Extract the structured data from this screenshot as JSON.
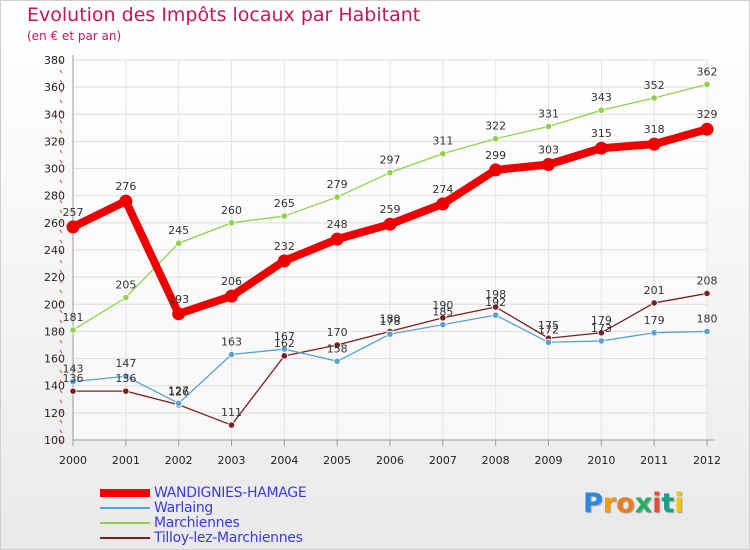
{
  "title": "Evolution des Impôts locaux par Habitant",
  "subtitle": "(en € et par an)",
  "logo_text": "Proxiti",
  "chart_data": {
    "type": "line",
    "x": [
      "2000",
      "2001",
      "2002",
      "2003",
      "2004",
      "2005",
      "2006",
      "2007",
      "2008",
      "2009",
      "2010",
      "2011",
      "2012"
    ],
    "ylim": [
      100,
      380
    ],
    "yticks": [
      100,
      120,
      140,
      160,
      180,
      200,
      220,
      240,
      260,
      280,
      300,
      320,
      340,
      360,
      380
    ],
    "grid": true,
    "legend_position": "bottom-left",
    "series": [
      {
        "name": "WANDIGNIES-HAMAGE",
        "color": "#ee0000",
        "values": [
          257,
          276,
          193,
          206,
          232,
          248,
          259,
          274,
          299,
          303,
          315,
          318,
          329
        ],
        "labels": [
          "257",
          "276",
          "193",
          "206",
          "232",
          "248",
          "259",
          "274",
          "299",
          "303",
          "315",
          "318",
          "329"
        ]
      },
      {
        "name": "Warlaing",
        "color": "#5aa0d2",
        "values": [
          143,
          147,
          127,
          163,
          167,
          158,
          178,
          185,
          192,
          172,
          173,
          179,
          180
        ],
        "labels": [
          "143",
          "147",
          "127",
          "163",
          "167",
          "158",
          "178",
          "185",
          "192",
          "172",
          "173",
          "179",
          "180"
        ]
      },
      {
        "name": "Marchiennes",
        "color": "#8ed24a",
        "values": [
          181,
          205,
          245,
          260,
          265,
          279,
          297,
          311,
          322,
          331,
          343,
          352,
          362
        ],
        "labels": [
          "181",
          "205",
          "245",
          "260",
          "265",
          "279",
          "297",
          "311",
          "322",
          "331",
          "343",
          "352",
          "362"
        ]
      },
      {
        "name": "Tilloy-lez-Marchiennes",
        "color": "#7a1f1f",
        "values": [
          136,
          136,
          126,
          111,
          162,
          170,
          180,
          190,
          198,
          175,
          179,
          201,
          208
        ],
        "labels": [
          "136",
          "136",
          "126",
          "111",
          "162",
          "170",
          "180",
          "190",
          "198",
          "175",
          "179",
          "201",
          "208"
        ]
      }
    ]
  }
}
